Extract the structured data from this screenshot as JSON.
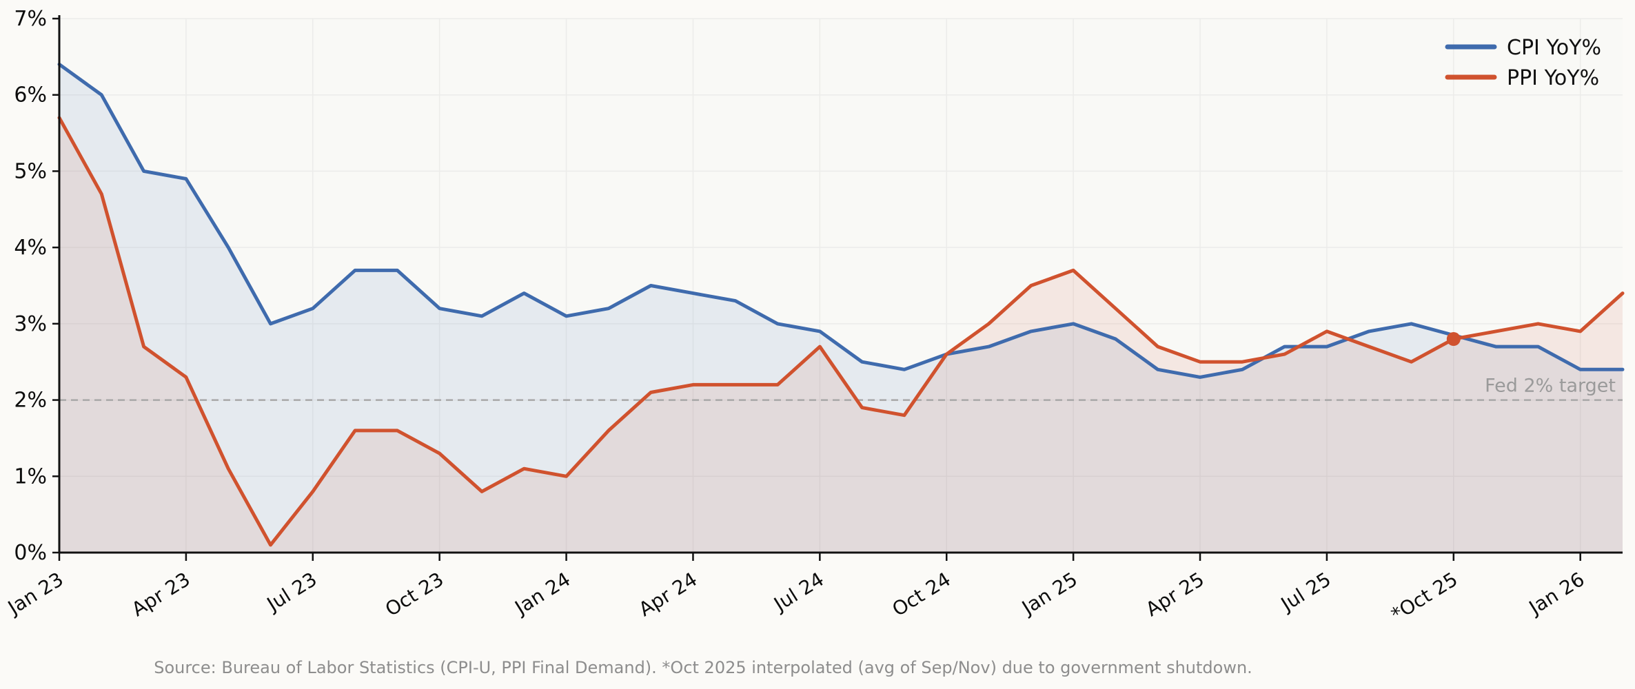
{
  "chart_data": {
    "type": "line",
    "title": "",
    "xlabel": "",
    "ylabel": "",
    "x_start": "Jan 2023",
    "x_interval": "monthly",
    "n_points": 38,
    "ylim": [
      0,
      7
    ],
    "yticks": [
      "0%",
      "1%",
      "2%",
      "3%",
      "4%",
      "5%",
      "6%",
      "7%"
    ],
    "ytick_values": [
      0,
      1,
      2,
      3,
      4,
      5,
      6,
      7
    ],
    "xtick_indices": [
      0,
      3,
      6,
      9,
      12,
      15,
      18,
      21,
      24,
      27,
      30,
      33,
      36
    ],
    "xtick_labels": [
      "Jan 23",
      "Apr 23",
      "Jul 23",
      "Oct 23",
      "Jan 24",
      "Apr 24",
      "Jul 24",
      "Oct 24",
      "Jan 25",
      "Apr 25",
      "Jul 25",
      "*Oct 25",
      "Jan 26"
    ],
    "grid": true,
    "legend_position": "top-right",
    "series": [
      {
        "name": "CPI YoY%",
        "color": "#3f6bad",
        "fill": "rgba(63,107,173,0.10)",
        "values": [
          6.4,
          6.0,
          5.0,
          4.9,
          4.0,
          3.0,
          3.2,
          3.7,
          3.7,
          3.2,
          3.1,
          3.4,
          3.1,
          3.2,
          3.5,
          3.4,
          3.3,
          3.0,
          2.9,
          2.5,
          2.4,
          2.6,
          2.7,
          2.9,
          3.0,
          2.8,
          2.4,
          2.3,
          2.4,
          2.7,
          2.7,
          2.9,
          3.0,
          2.85,
          2.7,
          2.7,
          2.4,
          2.4
        ]
      },
      {
        "name": "PPI YoY%",
        "color": "#d0522e",
        "fill": "rgba(208,82,46,0.10)",
        "values": [
          5.7,
          4.7,
          2.7,
          2.3,
          1.1,
          0.1,
          0.8,
          1.6,
          1.6,
          1.3,
          0.8,
          1.1,
          1.0,
          1.6,
          2.1,
          2.2,
          2.2,
          2.2,
          2.7,
          1.9,
          1.8,
          2.6,
          3.0,
          3.5,
          3.7,
          3.2,
          2.7,
          2.5,
          2.5,
          2.6,
          2.9,
          2.7,
          2.5,
          2.8,
          2.9,
          3.0,
          2.9,
          3.4
        ],
        "marker": {
          "index": 33,
          "value": 2.8,
          "label": "*Oct 25 interpolated point"
        }
      }
    ],
    "target_line": {
      "value": 2,
      "label": "Fed 2% target",
      "color": "#a8a8a8"
    },
    "caption": "Source: Bureau of Labor Statistics (CPI-U, PPI Final Demand). *Oct 2025 interpolated (avg of Sep/Nov) due to government shutdown."
  },
  "colors": {
    "background": "#fbfaf7",
    "plot_background": "#f9f9f6",
    "gridline": "#ececea",
    "axis": "#111111",
    "caption_text": "#8d8d8d"
  }
}
